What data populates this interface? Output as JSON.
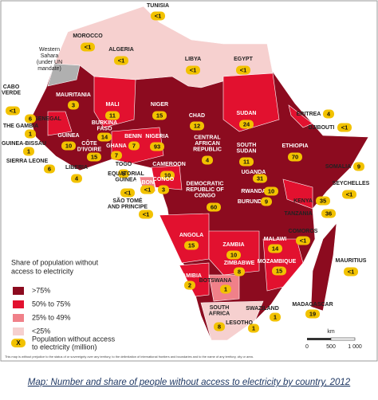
{
  "map": {
    "western_sahara": [
      "Western",
      "Sahara",
      "(under UN",
      "mandate)"
    ],
    "countries": [
      {
        "name": "MOROCCO",
        "value": "<1"
      },
      {
        "name": "TUNISIA",
        "value": "<1"
      },
      {
        "name": "ALGERIA",
        "value": "<1"
      },
      {
        "name": "LIBYA",
        "value": "<1"
      },
      {
        "name": "EGYPT",
        "value": "<1"
      },
      {
        "name": [
          "CABO",
          "VERDE"
        ],
        "value": "<1"
      },
      {
        "name": "MAURITANIA",
        "value": 3
      },
      {
        "name": "MALI",
        "value": 11
      },
      {
        "name": "NIGER",
        "value": 15
      },
      {
        "name": "CHAD",
        "value": 12
      },
      {
        "name": "SUDAN",
        "value": 24
      },
      {
        "name": "ERITREA",
        "value": 4
      },
      {
        "name": "DJIBOUTI",
        "value": "<1"
      },
      {
        "name": "SENEGAL",
        "value": 6
      },
      {
        "name": "THE GAMBIA",
        "value": 1
      },
      {
        "name": "GUINEA-BISSAU",
        "value": 1
      },
      {
        "name": "GUINEA",
        "value": 10
      },
      {
        "name": "SIERRA LEONE",
        "value": 6
      },
      {
        "name": "LIBERIA",
        "value": 4
      },
      {
        "name": [
          "BURKINA",
          "FASO"
        ],
        "value": 14
      },
      {
        "name": [
          "CÔTE",
          "D'IVOIRE"
        ],
        "value": 15
      },
      {
        "name": "GHANA",
        "value": 7
      },
      {
        "name": "TOGO",
        "value": 5
      },
      {
        "name": "BENIN",
        "value": 7
      },
      {
        "name": "NIGERIA",
        "value": 93
      },
      {
        "name": "CAMEROON",
        "value": 10
      },
      {
        "name": [
          "CENTRAL",
          "AFRICAN",
          "REPUBLIC"
        ],
        "value": 4
      },
      {
        "name": [
          "SOUTH",
          "SUDAN"
        ],
        "value": 11
      },
      {
        "name": "ETHIOPIA",
        "value": 70
      },
      {
        "name": "SOMALIA",
        "value": 9
      },
      {
        "name": [
          "EQUATORIAL",
          "GUINEA"
        ],
        "value": "<1"
      },
      {
        "name": "GABON",
        "value": "<1"
      },
      {
        "name": "CONGO",
        "value": 3
      },
      {
        "name": [
          "DEMOCRATIC",
          "REPUBLIC OF",
          "CONGO"
        ],
        "value": 60
      },
      {
        "name": "UGANDA",
        "value": 31
      },
      {
        "name": "RWANDA",
        "value": 10
      },
      {
        "name": "BURUNDI",
        "value": 9
      },
      {
        "name": "KENYA",
        "value": 35
      },
      {
        "name": "SEYCHELLES",
        "value": "<1"
      },
      {
        "name": [
          "SÃO TOMÉ",
          "AND PRINCIPE"
        ],
        "value": "<1"
      },
      {
        "name": "TANZANIA",
        "value": 36
      },
      {
        "name": "ANGOLA",
        "value": 15
      },
      {
        "name": "ZAMBIA",
        "value": 10
      },
      {
        "name": "MALAWI",
        "value": 14
      },
      {
        "name": "COMOROS",
        "value": "<1"
      },
      {
        "name": "MAURITIUS",
        "value": "<1"
      },
      {
        "name": "MOZAMBIQUE",
        "value": 15
      },
      {
        "name": "ZIMBABWE",
        "value": 8
      },
      {
        "name": "NAMIBIA",
        "value": 2
      },
      {
        "name": "BOTSWANA",
        "value": 1
      },
      {
        "name": "MADAGASCAR",
        "value": 19
      },
      {
        "name": [
          "SOUTH",
          "AFRICA"
        ],
        "value": 8
      },
      {
        "name": "SWAZILAND",
        "value": 1
      },
      {
        "name": "LESOTHO",
        "value": 1
      }
    ],
    "legend": {
      "title": [
        "Share of population without",
        "access to electricity"
      ],
      "items": [
        ">75%",
        "50% to 75%",
        "25% to 49%",
        "<25%"
      ],
      "badge": "X",
      "badge_text": [
        "Population without access",
        "to electricity (million)"
      ]
    },
    "scale": {
      "unit": "km",
      "ticks": [
        "0",
        "500",
        "1 000"
      ]
    },
    "disclaimer": "This map is without prejudice to the status of or sovereignty over any territory, to the delimitation of international frontiers and boundaries and to the name of any territory, city or area.",
    "caption": "Map: Number and share of people without access to electricity by country, 2012"
  }
}
